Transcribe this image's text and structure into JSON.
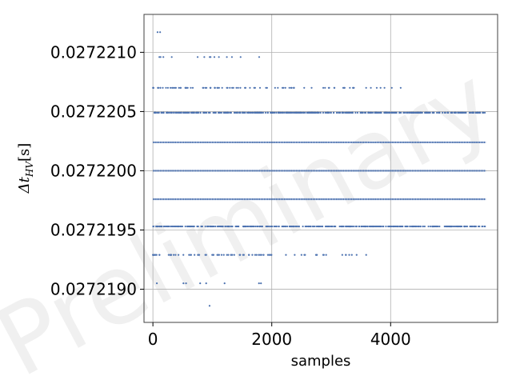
{
  "chart_data": {
    "type": "scatter",
    "xlabel": "samples",
    "ylabel": "Δt_HV[s]",
    "ylabel_main": "Δt",
    "ylabel_sub": "HV",
    "ylabel_unit": "[s]",
    "watermark": "Preliminary",
    "xlim": [
      -150,
      5800
    ],
    "ylim": [
      0.02721872,
      0.02722132
    ],
    "xticks": [
      0,
      2000,
      4000
    ],
    "xtick_labels": [
      "0",
      "2000",
      "4000"
    ],
    "yticks": [
      0.027219,
      0.0272195,
      0.02722,
      0.0272205,
      0.027221
    ],
    "ytick_labels": [
      "0.0272190",
      "0.0272195",
      "0.0272200",
      "0.0272205",
      "0.0272210"
    ],
    "grid": true,
    "marker_color": "#4c72b0",
    "n_samples": 5600,
    "levels": [
      {
        "y": 0.02722117,
        "density": "sparse",
        "x_ranges": [
          [
            60,
            180
          ]
        ],
        "count": 2
      },
      {
        "y": 0.02722096,
        "density": "sparse",
        "x_ranges": [
          [
            0,
            1800
          ]
        ],
        "count": 14
      },
      {
        "y": 0.0272207,
        "density": "sparse",
        "x_ranges": [
          [
            0,
            4200
          ]
        ],
        "count": 90
      },
      {
        "y": 0.02722049,
        "density": "medium",
        "x_ranges": [
          [
            0,
            5600
          ]
        ],
        "count": 900
      },
      {
        "y": 0.02722024,
        "density": "dense",
        "x_ranges": [
          [
            0,
            5600
          ]
        ],
        "count": 5600
      },
      {
        "y": 0.02722,
        "density": "dense",
        "x_ranges": [
          [
            0,
            5600
          ]
        ],
        "count": 5600
      },
      {
        "y": 0.02721976,
        "density": "dense",
        "x_ranges": [
          [
            0,
            5600
          ]
        ],
        "count": 5600
      },
      {
        "y": 0.02721953,
        "density": "medium",
        "x_ranges": [
          [
            0,
            5600
          ]
        ],
        "count": 900
      },
      {
        "y": 0.02721929,
        "density": "sparse",
        "x_ranges": [
          [
            0,
            3750
          ]
        ],
        "count": 80
      },
      {
        "y": 0.02721905,
        "density": "sparse",
        "x_ranges": [
          [
            0,
            2100
          ]
        ],
        "count": 8
      },
      {
        "y": 0.02721886,
        "density": "sparse",
        "x_ranges": [
          [
            950,
            1000
          ]
        ],
        "count": 1
      }
    ]
  }
}
